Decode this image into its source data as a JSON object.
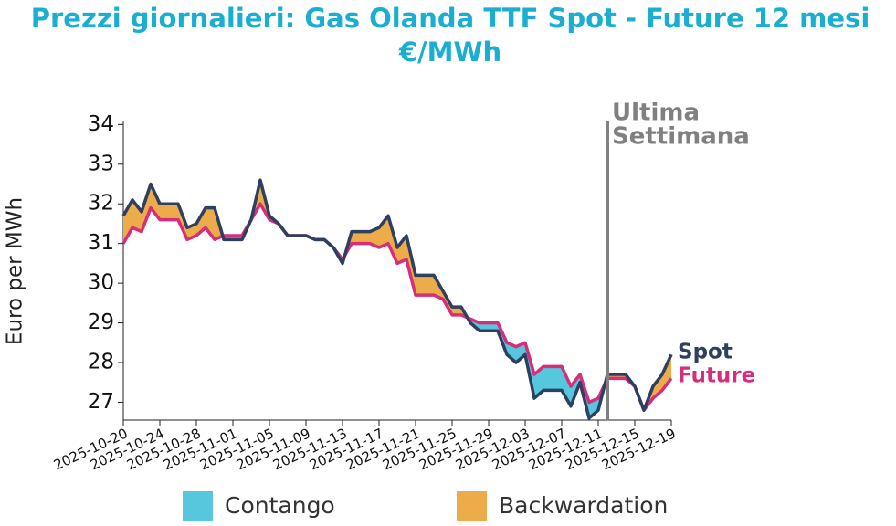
{
  "chart_data": {
    "type": "line",
    "title": "Prezzi giornalieri: Gas Olanda TTF Spot - Future 12 mesi",
    "subtitle": "€/MWh",
    "y_label": "Euro per MWh",
    "x": [
      "2025-10-20",
      "2025-10-21",
      "2025-10-22",
      "2025-10-23",
      "2025-10-24",
      "2025-10-25",
      "2025-10-26",
      "2025-10-27",
      "2025-10-28",
      "2025-10-29",
      "2025-10-30",
      "2025-10-31",
      "2025-11-01",
      "2025-11-02",
      "2025-11-03",
      "2025-11-04",
      "2025-11-05",
      "2025-11-06",
      "2025-11-07",
      "2025-11-08",
      "2025-11-09",
      "2025-11-10",
      "2025-11-11",
      "2025-11-12",
      "2025-11-13",
      "2025-11-14",
      "2025-11-15",
      "2025-11-16",
      "2025-11-17",
      "2025-11-18",
      "2025-11-19",
      "2025-11-20",
      "2025-11-21",
      "2025-11-22",
      "2025-11-23",
      "2025-11-24",
      "2025-11-25",
      "2025-11-26",
      "2025-11-27",
      "2025-11-28",
      "2025-11-29",
      "2025-11-30",
      "2025-12-01",
      "2025-12-02",
      "2025-12-03",
      "2025-12-04",
      "2025-12-05",
      "2025-12-06",
      "2025-12-07",
      "2025-12-08",
      "2025-12-09",
      "2025-12-10",
      "2025-12-11",
      "2025-12-12",
      "2025-12-13",
      "2025-12-14",
      "2025-12-15",
      "2025-12-16",
      "2025-12-17",
      "2025-12-18",
      "2025-12-19"
    ],
    "series": [
      {
        "name": "Spot",
        "color": "#2e3f60",
        "values": [
          31.7,
          32.1,
          31.8,
          32.5,
          32.0,
          32.0,
          32.0,
          31.4,
          31.5,
          31.9,
          31.9,
          31.1,
          31.1,
          31.1,
          31.6,
          32.6,
          31.7,
          31.5,
          31.2,
          31.2,
          31.2,
          31.1,
          31.1,
          30.9,
          30.5,
          31.3,
          31.3,
          31.3,
          31.4,
          31.7,
          30.9,
          31.2,
          30.2,
          30.2,
          30.2,
          29.8,
          29.4,
          29.4,
          29.0,
          28.8,
          28.8,
          28.8,
          28.2,
          28.0,
          28.2,
          27.1,
          27.3,
          27.3,
          27.3,
          26.9,
          27.5,
          26.6,
          26.8,
          27.7,
          27.7,
          27.7,
          27.4,
          26.8,
          27.4,
          27.7,
          28.2
        ]
      },
      {
        "name": "Future",
        "color": "#d62e7a",
        "values": [
          31.0,
          31.4,
          31.3,
          31.9,
          31.6,
          31.6,
          31.6,
          31.1,
          31.2,
          31.4,
          31.1,
          31.2,
          31.2,
          31.2,
          31.6,
          32.0,
          31.6,
          31.5,
          31.2,
          31.2,
          31.2,
          31.1,
          31.1,
          30.9,
          30.6,
          31.0,
          31.0,
          31.0,
          30.9,
          31.0,
          30.5,
          30.6,
          29.7,
          29.7,
          29.7,
          29.6,
          29.2,
          29.2,
          29.1,
          29.0,
          29.0,
          29.0,
          28.5,
          28.4,
          28.5,
          27.7,
          27.9,
          27.9,
          27.9,
          27.4,
          27.7,
          27.0,
          27.1,
          27.6,
          27.6,
          27.6,
          27.4,
          26.8,
          27.1,
          27.3,
          27.6
        ]
      }
    ],
    "fills": [
      {
        "name": "Contango",
        "color": "#56c7dc"
      },
      {
        "name": "Backwardation",
        "color": "#ecac4a"
      }
    ],
    "annotation": {
      "x": "2025-12-12",
      "text": [
        "Ultima",
        "Settimana"
      ],
      "color": "#808080"
    },
    "xlim": [
      "2025-10-20",
      "2025-12-19"
    ],
    "xticks": [
      "2025-10-20",
      "2025-10-24",
      "2025-10-28",
      "2025-11-01",
      "2025-11-05",
      "2025-11-09",
      "2025-11-13",
      "2025-11-17",
      "2025-11-21",
      "2025-11-25",
      "2025-11-29",
      "2025-12-03",
      "2025-12-07",
      "2025-12-11",
      "2025-12-15",
      "2025-12-19"
    ],
    "ylim": [
      26.55,
      34.1
    ],
    "yticks": [
      27,
      28,
      29,
      30,
      31,
      32,
      33,
      34
    ]
  }
}
